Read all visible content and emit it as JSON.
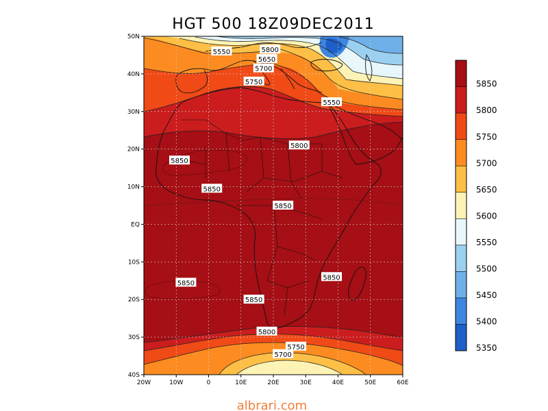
{
  "map": {
    "title": "HGT 500 18Z09DEC2011",
    "credit": "albrari.com",
    "lat_ticks": [
      "50N",
      "40N",
      "30N",
      "20N",
      "10N",
      "EQ",
      "10S",
      "20S",
      "30S",
      "40S"
    ],
    "lon_ticks": [
      "20W",
      "10W",
      "0",
      "10E",
      "20E",
      "30E",
      "40E",
      "50E",
      "60E"
    ],
    "lat_range": [
      -40,
      50
    ],
    "lon_range": [
      -20,
      60
    ],
    "grid": "dashed"
  },
  "colorbar": {
    "levels": [
      "5850",
      "5800",
      "5750",
      "5700",
      "5650",
      "5600",
      "5550",
      "5500",
      "5450",
      "5400",
      "5350"
    ],
    "colors": [
      "#a50f15",
      "#cb1d1e",
      "#f04a16",
      "#fc8c21",
      "#fdbf45",
      "#fdf3b5",
      "#e8f7fb",
      "#9bd0f0",
      "#6fb0e8",
      "#3f86e0",
      "#1f5fc8"
    ]
  },
  "contour_labels": [
    {
      "text": "5550",
      "lon": 4,
      "lat": 46
    },
    {
      "text": "5800",
      "lon": 19,
      "lat": 46.5
    },
    {
      "text": "5650",
      "lon": 18,
      "lat": 44
    },
    {
      "text": "5700",
      "lon": 17,
      "lat": 41.5
    },
    {
      "text": "5750",
      "lon": 14,
      "lat": 38
    },
    {
      "text": "5550",
      "lon": 38,
      "lat": 32.5
    },
    {
      "text": "5800",
      "lon": 28,
      "lat": 21
    },
    {
      "text": "5850",
      "lon": -9,
      "lat": 17
    },
    {
      "text": "5850",
      "lon": 1,
      "lat": 9.5
    },
    {
      "text": "5850",
      "lon": 23,
      "lat": 5
    },
    {
      "text": "5850",
      "lon": 38,
      "lat": -14
    },
    {
      "text": "5850",
      "lon": -7,
      "lat": -15.5
    },
    {
      "text": "5850",
      "lon": 14,
      "lat": -20
    },
    {
      "text": "5800",
      "lon": 18,
      "lat": -28.5
    },
    {
      "text": "5750",
      "lon": 27,
      "lat": -32.5
    },
    {
      "text": "5700",
      "lon": 23,
      "lat": -34.5
    }
  ]
}
